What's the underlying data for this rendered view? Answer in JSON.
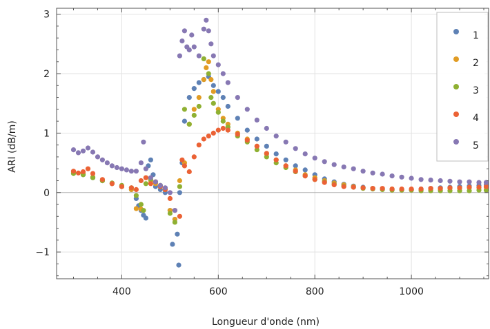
{
  "chart_data": {
    "type": "scatter",
    "xlabel": "Longueur d'onde (nm)",
    "ylabel": "ARI (dB/m)",
    "xlim": [
      265,
      1160
    ],
    "ylim": [
      -1.45,
      3.1
    ],
    "xticks": [
      400,
      600,
      800,
      1000
    ],
    "yticks": [
      -1,
      0,
      1,
      2,
      3
    ],
    "xtick_labels": [
      "400",
      "600",
      "800",
      "1000"
    ],
    "ytick_labels": [
      "−1",
      "0",
      "1",
      "2",
      "3"
    ],
    "grid": true,
    "legend_position": "top-right",
    "series": [
      {
        "name": "1",
        "color": "#5e81b5",
        "points": [
          [
            300,
            0.33
          ],
          [
            320,
            0.3
          ],
          [
            340,
            0.25
          ],
          [
            360,
            0.2
          ],
          [
            380,
            0.15
          ],
          [
            400,
            0.1
          ],
          [
            420,
            0.05
          ],
          [
            430,
            -0.1
          ],
          [
            435,
            -0.22
          ],
          [
            440,
            -0.3
          ],
          [
            445,
            -0.38
          ],
          [
            450,
            -0.43
          ],
          [
            455,
            0.45
          ],
          [
            460,
            0.55
          ],
          [
            465,
            0.3
          ],
          [
            470,
            0.1
          ],
          [
            480,
            0.05
          ],
          [
            490,
            0.0
          ],
          [
            500,
            -0.3
          ],
          [
            505,
            -0.87
          ],
          [
            510,
            -0.45
          ],
          [
            515,
            -0.7
          ],
          [
            518,
            -1.22
          ],
          [
            520,
            0.0
          ],
          [
            525,
            0.5
          ],
          [
            530,
            1.2
          ],
          [
            540,
            1.6
          ],
          [
            550,
            1.75
          ],
          [
            560,
            1.85
          ],
          [
            570,
            1.9
          ],
          [
            580,
            1.95
          ],
          [
            590,
            1.8
          ],
          [
            600,
            1.7
          ],
          [
            610,
            1.6
          ],
          [
            620,
            1.45
          ],
          [
            640,
            1.25
          ],
          [
            660,
            1.05
          ],
          [
            680,
            0.9
          ],
          [
            700,
            0.78
          ],
          [
            720,
            0.65
          ],
          [
            740,
            0.55
          ],
          [
            760,
            0.45
          ],
          [
            780,
            0.38
          ],
          [
            800,
            0.3
          ],
          [
            820,
            0.23
          ],
          [
            840,
            0.18
          ],
          [
            860,
            0.14
          ],
          [
            880,
            0.11
          ],
          [
            900,
            0.09
          ],
          [
            920,
            0.07
          ],
          [
            940,
            0.06
          ],
          [
            960,
            0.05
          ],
          [
            980,
            0.05
          ],
          [
            1000,
            0.05
          ],
          [
            1020,
            0.06
          ],
          [
            1040,
            0.07
          ],
          [
            1060,
            0.08
          ],
          [
            1080,
            0.09
          ],
          [
            1100,
            0.1
          ],
          [
            1120,
            0.11
          ],
          [
            1140,
            0.12
          ],
          [
            1155,
            0.13
          ]
        ]
      },
      {
        "name": "2",
        "color": "#e19c24",
        "points": [
          [
            300,
            0.35
          ],
          [
            320,
            0.32
          ],
          [
            340,
            0.26
          ],
          [
            360,
            0.2
          ],
          [
            380,
            0.15
          ],
          [
            400,
            0.1
          ],
          [
            420,
            0.05
          ],
          [
            430,
            -0.27
          ],
          [
            440,
            -0.28
          ],
          [
            450,
            0.25
          ],
          [
            460,
            0.2
          ],
          [
            470,
            0.15
          ],
          [
            480,
            0.1
          ],
          [
            490,
            0.05
          ],
          [
            500,
            -0.3
          ],
          [
            510,
            -0.45
          ],
          [
            520,
            0.2
          ],
          [
            530,
            0.5
          ],
          [
            540,
            1.15
          ],
          [
            550,
            1.4
          ],
          [
            560,
            1.6
          ],
          [
            570,
            1.9
          ],
          [
            575,
            2.1
          ],
          [
            580,
            2.2
          ],
          [
            585,
            1.9
          ],
          [
            590,
            1.7
          ],
          [
            600,
            1.4
          ],
          [
            610,
            1.25
          ],
          [
            620,
            1.15
          ],
          [
            640,
            1.0
          ],
          [
            660,
            0.9
          ],
          [
            680,
            0.78
          ],
          [
            700,
            0.65
          ],
          [
            720,
            0.55
          ],
          [
            740,
            0.45
          ],
          [
            760,
            0.38
          ],
          [
            780,
            0.3
          ],
          [
            800,
            0.25
          ],
          [
            820,
            0.2
          ],
          [
            840,
            0.16
          ],
          [
            860,
            0.13
          ],
          [
            880,
            0.1
          ],
          [
            900,
            0.08
          ],
          [
            920,
            0.07
          ],
          [
            940,
            0.06
          ],
          [
            960,
            0.06
          ],
          [
            980,
            0.05
          ],
          [
            1000,
            0.05
          ],
          [
            1020,
            0.05
          ],
          [
            1040,
            0.06
          ],
          [
            1060,
            0.06
          ],
          [
            1080,
            0.07
          ],
          [
            1100,
            0.07
          ],
          [
            1120,
            0.08
          ],
          [
            1140,
            0.08
          ],
          [
            1155,
            0.09
          ]
        ]
      },
      {
        "name": "3",
        "color": "#8fb032",
        "points": [
          [
            300,
            0.32
          ],
          [
            320,
            0.3
          ],
          [
            340,
            0.25
          ],
          [
            360,
            0.2
          ],
          [
            380,
            0.16
          ],
          [
            400,
            0.12
          ],
          [
            420,
            0.08
          ],
          [
            430,
            -0.05
          ],
          [
            440,
            -0.2
          ],
          [
            445,
            -0.3
          ],
          [
            450,
            0.15
          ],
          [
            460,
            0.22
          ],
          [
            470,
            0.18
          ],
          [
            480,
            0.12
          ],
          [
            490,
            0.06
          ],
          [
            500,
            -0.35
          ],
          [
            510,
            -0.5
          ],
          [
            520,
            0.1
          ],
          [
            530,
            1.4
          ],
          [
            540,
            1.15
          ],
          [
            550,
            1.3
          ],
          [
            560,
            1.45
          ],
          [
            570,
            2.25
          ],
          [
            580,
            2.0
          ],
          [
            585,
            1.6
          ],
          [
            590,
            1.5
          ],
          [
            600,
            1.35
          ],
          [
            610,
            1.2
          ],
          [
            620,
            1.1
          ],
          [
            640,
            0.95
          ],
          [
            660,
            0.85
          ],
          [
            680,
            0.72
          ],
          [
            700,
            0.6
          ],
          [
            720,
            0.5
          ],
          [
            740,
            0.42
          ],
          [
            760,
            0.35
          ],
          [
            780,
            0.28
          ],
          [
            800,
            0.22
          ],
          [
            820,
            0.18
          ],
          [
            840,
            0.14
          ],
          [
            860,
            0.11
          ],
          [
            880,
            0.09
          ],
          [
            900,
            0.07
          ],
          [
            920,
            0.06
          ],
          [
            940,
            0.05
          ],
          [
            960,
            0.04
          ],
          [
            980,
            0.04
          ],
          [
            1000,
            0.04
          ],
          [
            1020,
            0.03
          ],
          [
            1040,
            0.03
          ],
          [
            1060,
            0.03
          ],
          [
            1080,
            0.03
          ],
          [
            1100,
            0.03
          ],
          [
            1120,
            0.03
          ],
          [
            1140,
            0.04
          ],
          [
            1155,
            0.04
          ]
        ]
      },
      {
        "name": "4",
        "color": "#eb6235",
        "points": [
          [
            300,
            0.36
          ],
          [
            310,
            0.33
          ],
          [
            320,
            0.35
          ],
          [
            330,
            0.4
          ],
          [
            340,
            0.32
          ],
          [
            360,
            0.22
          ],
          [
            380,
            0.15
          ],
          [
            400,
            0.1
          ],
          [
            420,
            0.08
          ],
          [
            430,
            0.05
          ],
          [
            440,
            0.2
          ],
          [
            450,
            0.25
          ],
          [
            460,
            0.15
          ],
          [
            470,
            0.18
          ],
          [
            480,
            0.1
          ],
          [
            490,
            0.05
          ],
          [
            500,
            -0.1
          ],
          [
            510,
            -0.3
          ],
          [
            520,
            -0.4
          ],
          [
            525,
            0.55
          ],
          [
            530,
            0.45
          ],
          [
            540,
            0.35
          ],
          [
            550,
            0.6
          ],
          [
            560,
            0.8
          ],
          [
            570,
            0.9
          ],
          [
            580,
            0.95
          ],
          [
            590,
            1.0
          ],
          [
            600,
            1.05
          ],
          [
            610,
            1.08
          ],
          [
            620,
            1.05
          ],
          [
            640,
            0.98
          ],
          [
            660,
            0.88
          ],
          [
            680,
            0.78
          ],
          [
            700,
            0.66
          ],
          [
            720,
            0.55
          ],
          [
            740,
            0.45
          ],
          [
            760,
            0.36
          ],
          [
            780,
            0.28
          ],
          [
            800,
            0.22
          ],
          [
            820,
            0.17
          ],
          [
            840,
            0.13
          ],
          [
            860,
            0.1
          ],
          [
            880,
            0.09
          ],
          [
            900,
            0.08
          ],
          [
            920,
            0.07
          ],
          [
            940,
            0.07
          ],
          [
            960,
            0.06
          ],
          [
            980,
            0.06
          ],
          [
            1000,
            0.06
          ],
          [
            1020,
            0.06
          ],
          [
            1040,
            0.07
          ],
          [
            1060,
            0.07
          ],
          [
            1080,
            0.08
          ],
          [
            1100,
            0.08
          ],
          [
            1120,
            0.09
          ],
          [
            1140,
            0.09
          ],
          [
            1155,
            0.1
          ]
        ]
      },
      {
        "name": "5",
        "color": "#8778b3",
        "points": [
          [
            300,
            0.72
          ],
          [
            310,
            0.67
          ],
          [
            320,
            0.7
          ],
          [
            330,
            0.75
          ],
          [
            340,
            0.68
          ],
          [
            350,
            0.6
          ],
          [
            360,
            0.55
          ],
          [
            370,
            0.5
          ],
          [
            380,
            0.45
          ],
          [
            390,
            0.42
          ],
          [
            400,
            0.4
          ],
          [
            410,
            0.38
          ],
          [
            420,
            0.36
          ],
          [
            430,
            0.36
          ],
          [
            440,
            0.5
          ],
          [
            445,
            0.85
          ],
          [
            450,
            0.4
          ],
          [
            460,
            0.25
          ],
          [
            470,
            0.18
          ],
          [
            480,
            0.12
          ],
          [
            490,
            0.08
          ],
          [
            500,
            0.0
          ],
          [
            510,
            -0.3
          ],
          [
            520,
            2.3
          ],
          [
            525,
            2.55
          ],
          [
            530,
            2.72
          ],
          [
            535,
            2.45
          ],
          [
            540,
            2.4
          ],
          [
            545,
            2.65
          ],
          [
            550,
            2.45
          ],
          [
            560,
            2.3
          ],
          [
            570,
            2.75
          ],
          [
            575,
            2.9
          ],
          [
            580,
            2.72
          ],
          [
            585,
            2.5
          ],
          [
            590,
            2.3
          ],
          [
            600,
            2.15
          ],
          [
            610,
            2.0
          ],
          [
            620,
            1.85
          ],
          [
            640,
            1.6
          ],
          [
            660,
            1.4
          ],
          [
            680,
            1.22
          ],
          [
            700,
            1.08
          ],
          [
            720,
            0.95
          ],
          [
            740,
            0.85
          ],
          [
            760,
            0.74
          ],
          [
            780,
            0.65
          ],
          [
            800,
            0.58
          ],
          [
            820,
            0.52
          ],
          [
            840,
            0.47
          ],
          [
            860,
            0.43
          ],
          [
            880,
            0.4
          ],
          [
            900,
            0.36
          ],
          [
            920,
            0.33
          ],
          [
            940,
            0.31
          ],
          [
            960,
            0.28
          ],
          [
            980,
            0.26
          ],
          [
            1000,
            0.24
          ],
          [
            1020,
            0.22
          ],
          [
            1040,
            0.21
          ],
          [
            1060,
            0.2
          ],
          [
            1080,
            0.19
          ],
          [
            1100,
            0.18
          ],
          [
            1120,
            0.18
          ],
          [
            1140,
            0.17
          ],
          [
            1155,
            0.17
          ]
        ]
      }
    ]
  }
}
